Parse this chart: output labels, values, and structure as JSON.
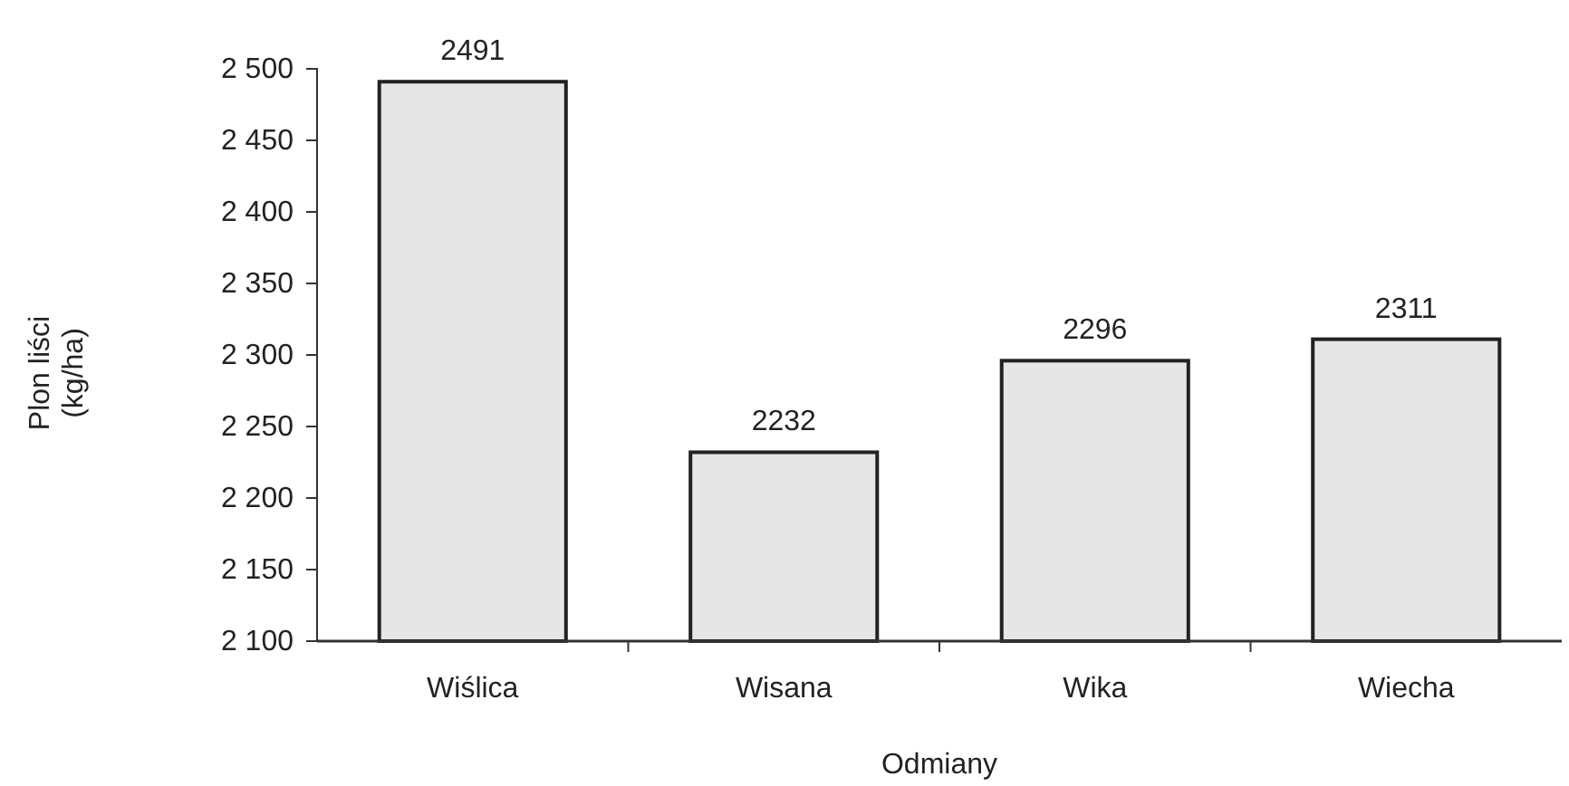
{
  "chart_data": {
    "type": "bar",
    "xlabel": "Odmiany",
    "ylabel": "Plon liści\n(kg/ha)",
    "categories": [
      "Wiślica",
      "Wisana",
      "Wika",
      "Wiecha"
    ],
    "values": [
      2491,
      2232,
      2296,
      2311
    ],
    "color": "#e6e6e6",
    "ylim": [
      2100,
      2500
    ],
    "yticks": [
      {
        "value": 2100,
        "label": "2 100"
      },
      {
        "value": 2150,
        "label": "2 150"
      },
      {
        "value": 2200,
        "label": "2 200"
      },
      {
        "value": 2250,
        "label": "2 250"
      },
      {
        "value": 2300,
        "label": "2 300"
      },
      {
        "value": 2350,
        "label": "2 350"
      },
      {
        "value": 2400,
        "label": "2 400"
      },
      {
        "value": 2450,
        "label": "2 450"
      },
      {
        "value": 2500,
        "label": "2 500"
      }
    ],
    "data_labels": true
  }
}
